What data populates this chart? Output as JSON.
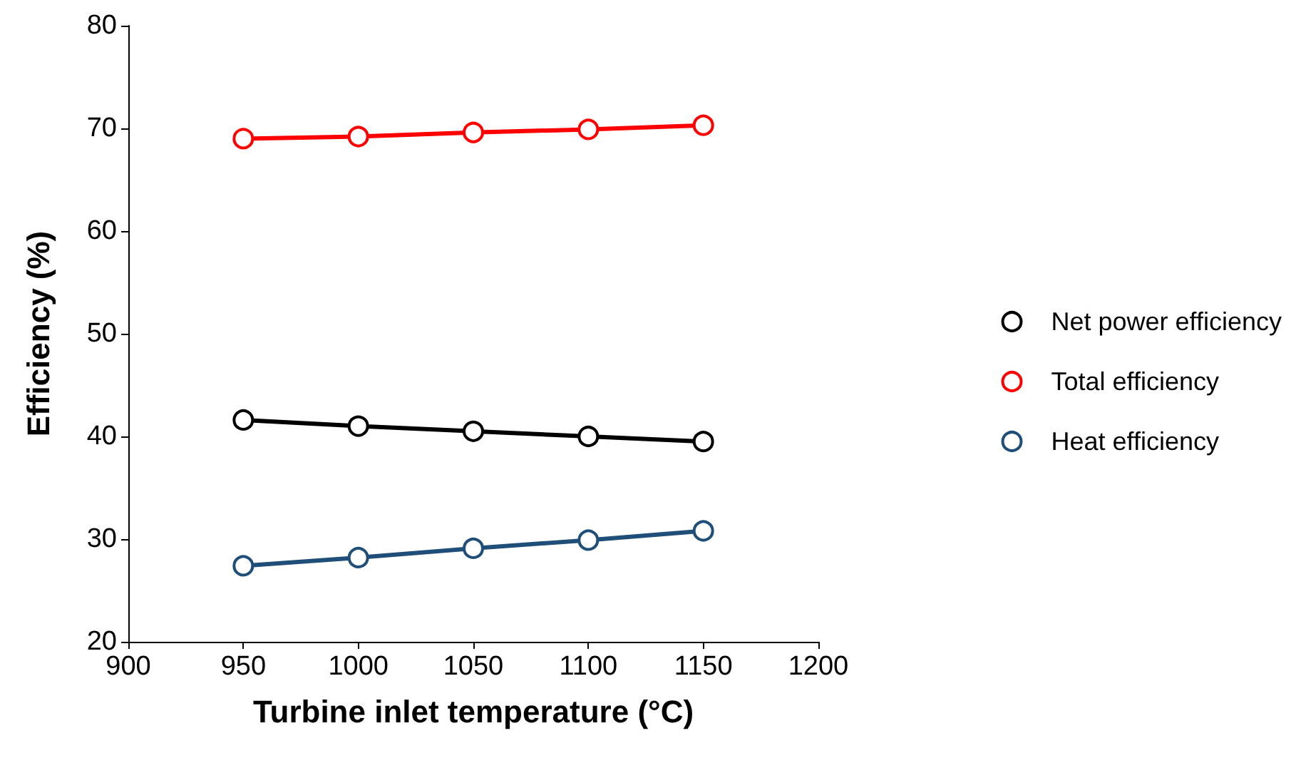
{
  "chart_data": {
    "type": "line",
    "xlabel": "Turbine inlet temperature (°C)",
    "ylabel": "Efficiency (%)",
    "x": [
      950,
      1000,
      1050,
      1100,
      1150
    ],
    "series": [
      {
        "name": "Net power efficiency",
        "color": "#000000",
        "values": [
          41.6,
          41.0,
          40.5,
          40.0,
          39.5
        ]
      },
      {
        "name": "Total efficiency",
        "color": "#ff0000",
        "values": [
          69.0,
          69.2,
          69.6,
          69.9,
          70.3
        ]
      },
      {
        "name": "Heat efficiency",
        "color": "#1f4e79",
        "values": [
          27.4,
          28.2,
          29.1,
          29.9,
          30.8
        ]
      }
    ],
    "xlim": [
      900,
      1200
    ],
    "xticks": [
      900,
      950,
      1000,
      1050,
      1100,
      1150,
      1200
    ],
    "ylim": [
      20,
      80
    ],
    "yticks": [
      20,
      30,
      40,
      50,
      60,
      70,
      80
    ],
    "grid": false,
    "legend": "right",
    "marker": "circle",
    "line_style": "solid"
  }
}
